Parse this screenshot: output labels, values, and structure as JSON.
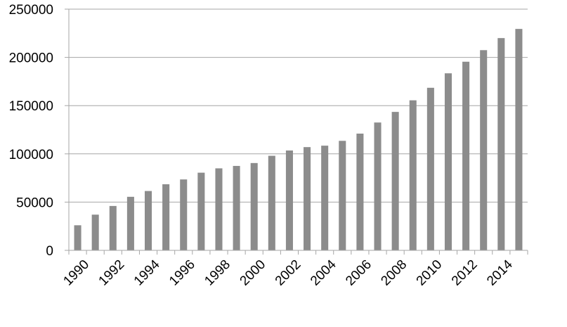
{
  "chart_data": {
    "type": "bar",
    "title": "",
    "xlabel": "",
    "ylabel": "",
    "categories": [
      "1990",
      "1991",
      "1992",
      "1993",
      "1994",
      "1995",
      "1996",
      "1997",
      "1998",
      "1999",
      "2000",
      "2001",
      "2002",
      "2003",
      "2004",
      "2005",
      "2006",
      "2007",
      "2008",
      "2009",
      "2010",
      "2011",
      "2012",
      "2013",
      "2014",
      "2015"
    ],
    "values": [
      26000,
      37000,
      46000,
      55500,
      61500,
      68500,
      73500,
      80500,
      85000,
      87500,
      90500,
      98000,
      103500,
      107000,
      108500,
      113500,
      121000,
      132500,
      143500,
      155500,
      168500,
      183500,
      195500,
      207500,
      220000,
      229500
    ],
    "x_tick_labels": [
      "1990",
      "1992",
      "1994",
      "1996",
      "1998",
      "2000",
      "2002",
      "2004",
      "2006",
      "2008",
      "2010",
      "2012",
      "2014"
    ],
    "y_ticks": [
      0,
      50000,
      100000,
      150000,
      200000,
      250000
    ],
    "y_tick_labels": [
      "0",
      "50000",
      "100000",
      "150000",
      "200000",
      "250000"
    ],
    "ylim": [
      0,
      250000
    ],
    "grid": true,
    "legend": "none",
    "colors": {
      "bar": "#8c8c8c",
      "grid": "#a6a6a6",
      "axis": "#a6a6a6",
      "text": "#000000"
    }
  }
}
